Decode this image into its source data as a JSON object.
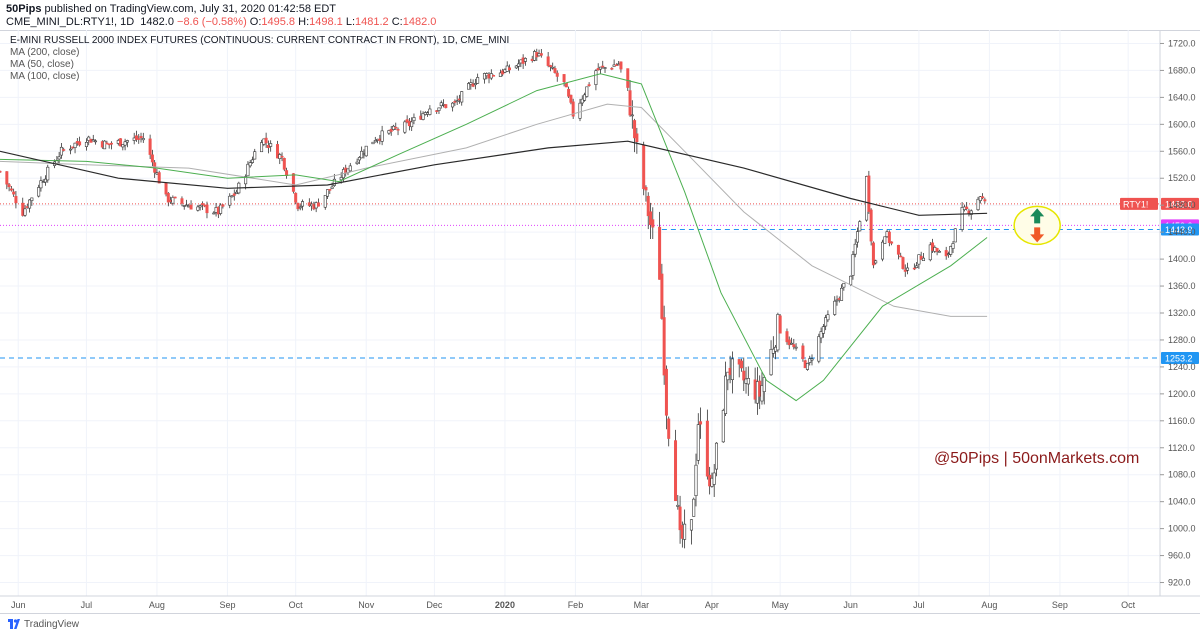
{
  "header": {
    "publisher": "50Pips",
    "published_text": "published on TradingView.com, July 31, 2020 01:42:58 EDT",
    "symbol_line": "CME_MINI_DL:RTY1!, 1D",
    "last": "1482.0",
    "change": "−8.6 (−0.58%)",
    "ohlc": {
      "O": "1495.8",
      "H": "1498.1",
      "L": "1481.2",
      "C": "1482.0"
    }
  },
  "legend": {
    "title": "E-MINI RUSSELL 2000 INDEX FUTURES (CONTINUOUS: CURRENT CONTRACT IN FRONT), 1D, CME_MINI",
    "ma200": "MA (200, close)",
    "ma50": "MA (50, close)",
    "ma100": "MA (100, close)"
  },
  "watermark": "@50Pips  |  50onMarkets.com",
  "footer": {
    "brand": "TradingView"
  },
  "colors": {
    "up": "#26a69a",
    "down": "#ef5350",
    "candle_up_body": "#ffffff",
    "ma200": "#2a2a2a",
    "ma50": "#4caf50",
    "ma100": "#b0b0b0",
    "watermark": "#8b1a1a",
    "blue_line": "#2196f3",
    "magenta_line": "#e040fb"
  },
  "chart_data": {
    "type": "candlestick",
    "symbol": "RTY1!",
    "interval": "1D",
    "x_range": [
      "2019-05-24",
      "2020-10-15"
    ],
    "ylim": [
      900,
      1740
    ],
    "y_ticks": [
      920,
      960,
      1000,
      1040,
      1080,
      1120,
      1160,
      1200,
      1240,
      1280,
      1320,
      1360,
      1400,
      1440,
      1480,
      1520,
      1560,
      1600,
      1640,
      1680,
      1720
    ],
    "x_ticks": [
      {
        "label": "Jun",
        "date": "2019-06-01"
      },
      {
        "label": "Jul",
        "date": "2019-07-01"
      },
      {
        "label": "Aug",
        "date": "2019-08-01"
      },
      {
        "label": "Sep",
        "date": "2019-09-01"
      },
      {
        "label": "Oct",
        "date": "2019-10-01"
      },
      {
        "label": "Nov",
        "date": "2019-11-01"
      },
      {
        "label": "Dec",
        "date": "2019-12-01"
      },
      {
        "label": "2020",
        "date": "2020-01-01"
      },
      {
        "label": "Feb",
        "date": "2020-02-01"
      },
      {
        "label": "Mar",
        "date": "2020-03-01"
      },
      {
        "label": "Apr",
        "date": "2020-04-01"
      },
      {
        "label": "May",
        "date": "2020-05-01"
      },
      {
        "label": "Jun",
        "date": "2020-06-01"
      },
      {
        "label": "Jul",
        "date": "2020-07-01"
      },
      {
        "label": "Aug",
        "date": "2020-08-01"
      },
      {
        "label": "Sep",
        "date": "2020-09-01"
      },
      {
        "label": "Oct",
        "date": "2020-10-01"
      }
    ],
    "close_path": [
      [
        "2019-05-24",
        1530
      ],
      [
        "2019-06-03",
        1470
      ],
      [
        "2019-06-10",
        1510
      ],
      [
        "2019-06-20",
        1560
      ],
      [
        "2019-07-01",
        1580
      ],
      [
        "2019-07-10",
        1570
      ],
      [
        "2019-07-26",
        1580
      ],
      [
        "2019-08-05",
        1490
      ],
      [
        "2019-08-15",
        1480
      ],
      [
        "2019-08-28",
        1470
      ],
      [
        "2019-09-05",
        1500
      ],
      [
        "2019-09-16",
        1580
      ],
      [
        "2019-09-25",
        1550
      ],
      [
        "2019-10-02",
        1480
      ],
      [
        "2019-10-10",
        1480
      ],
      [
        "2019-10-25",
        1540
      ],
      [
        "2019-11-05",
        1580
      ],
      [
        "2019-11-20",
        1600
      ],
      [
        "2019-11-29",
        1625
      ],
      [
        "2019-12-10",
        1630
      ],
      [
        "2019-12-20",
        1670
      ],
      [
        "2020-01-02",
        1680
      ],
      [
        "2020-01-15",
        1705
      ],
      [
        "2020-01-27",
        1660
      ],
      [
        "2020-01-31",
        1615
      ],
      [
        "2020-02-10",
        1680
      ],
      [
        "2020-02-20",
        1690
      ],
      [
        "2020-02-24",
        1650
      ],
      [
        "2020-02-28",
        1560
      ],
      [
        "2020-03-04",
        1470
      ],
      [
        "2020-03-09",
        1380
      ],
      [
        "2020-03-12",
        1180
      ],
      [
        "2020-03-16",
        1060
      ],
      [
        "2020-03-18",
        980
      ],
      [
        "2020-03-23",
        1000
      ],
      [
        "2020-03-26",
        1160
      ],
      [
        "2020-04-01",
        1060
      ],
      [
        "2020-04-08",
        1240
      ],
      [
        "2020-04-15",
        1220
      ],
      [
        "2020-04-22",
        1200
      ],
      [
        "2020-04-30",
        1300
      ],
      [
        "2020-05-13",
        1240
      ],
      [
        "2020-05-20",
        1300
      ],
      [
        "2020-06-01",
        1380
      ],
      [
        "2020-06-08",
        1520
      ],
      [
        "2020-06-11",
        1390
      ],
      [
        "2020-06-16",
        1440
      ],
      [
        "2020-06-26",
        1380
      ],
      [
        "2020-07-06",
        1420
      ],
      [
        "2020-07-13",
        1400
      ],
      [
        "2020-07-20",
        1470
      ],
      [
        "2020-07-24",
        1475
      ],
      [
        "2020-07-28",
        1495
      ],
      [
        "2020-07-30",
        1482
      ]
    ],
    "ma200_path": [
      [
        "2019-05-24",
        1560
      ],
      [
        "2019-07-15",
        1520
      ],
      [
        "2019-09-01",
        1505
      ],
      [
        "2019-10-15",
        1510
      ],
      [
        "2019-12-01",
        1540
      ],
      [
        "2020-01-20",
        1565
      ],
      [
        "2020-02-24",
        1575
      ],
      [
        "2020-04-15",
        1535
      ],
      [
        "2020-06-01",
        1490
      ],
      [
        "2020-07-01",
        1465
      ],
      [
        "2020-07-31",
        1468
      ]
    ],
    "ma50_path": [
      [
        "2019-05-24",
        1548
      ],
      [
        "2019-07-01",
        1545
      ],
      [
        "2019-08-01",
        1535
      ],
      [
        "2019-09-01",
        1520
      ],
      [
        "2019-10-01",
        1525
      ],
      [
        "2019-10-20",
        1515
      ],
      [
        "2019-11-15",
        1555
      ],
      [
        "2019-12-15",
        1600
      ],
      [
        "2020-01-15",
        1650
      ],
      [
        "2020-02-12",
        1675
      ],
      [
        "2020-03-01",
        1660
      ],
      [
        "2020-03-20",
        1500
      ],
      [
        "2020-04-05",
        1350
      ],
      [
        "2020-04-25",
        1220
      ],
      [
        "2020-05-08",
        1190
      ],
      [
        "2020-05-20",
        1220
      ],
      [
        "2020-06-15",
        1330
      ],
      [
        "2020-07-15",
        1390
      ],
      [
        "2020-07-31",
        1432
      ]
    ],
    "ma100_path": [
      [
        "2019-05-24",
        1545
      ],
      [
        "2019-07-01",
        1540
      ],
      [
        "2019-08-15",
        1535
      ],
      [
        "2019-10-01",
        1510
      ],
      [
        "2019-11-01",
        1535
      ],
      [
        "2019-12-15",
        1565
      ],
      [
        "2020-01-15",
        1600
      ],
      [
        "2020-02-15",
        1630
      ],
      [
        "2020-03-01",
        1625
      ],
      [
        "2020-03-20",
        1560
      ],
      [
        "2020-04-15",
        1470
      ],
      [
        "2020-05-15",
        1390
      ],
      [
        "2020-06-20",
        1330
      ],
      [
        "2020-07-15",
        1315
      ],
      [
        "2020-07-31",
        1315
      ]
    ],
    "horizontal_lines": [
      {
        "value": 1482.0,
        "label": "1482.0",
        "tag": "RTY1!",
        "style": "dotted",
        "color": "#ef5350"
      },
      {
        "value": 1450.0,
        "label": "1450.0",
        "style": "dotted",
        "color": "#e040fb"
      },
      {
        "value": 1443.9,
        "label": "1443.9",
        "style": "dashed",
        "color": "#2196f3"
      },
      {
        "value": 1253.2,
        "label": "1253.2",
        "style": "dashed",
        "color": "#2196f3"
      }
    ],
    "annotation": {
      "type": "ellipse-arrows",
      "date": "2020-08-22",
      "value": 1450,
      "up_color": "#1b8a5a",
      "down_color": "#f05a28",
      "fill": "#fffde7",
      "stroke": "#e6e600"
    }
  }
}
